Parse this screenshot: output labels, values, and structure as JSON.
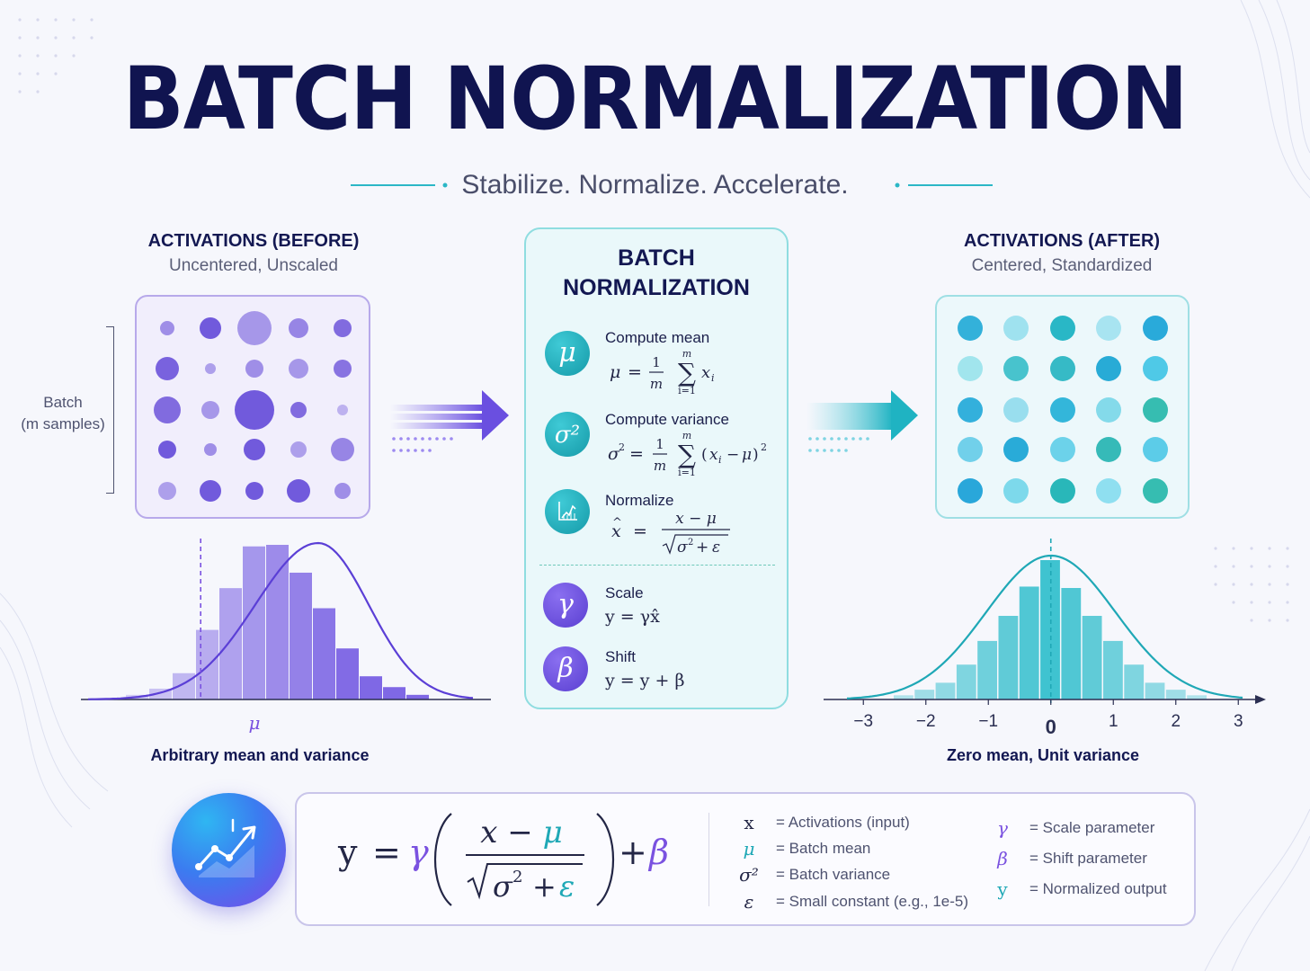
{
  "title": "BATCH NORMALIZATION",
  "subtitle": "Stabilize. Normalize. Accelerate.",
  "colors": {
    "purple": "#6a4fe0",
    "teal": "#1fb7c4",
    "navy": "#101450"
  },
  "before": {
    "heading": "ACTIVATIONS (BEFORE)",
    "subheading": "Uncentered, Unscaled",
    "batch_label": "Batch\n(m samples)",
    "dots": [
      [
        8,
        0.55
      ],
      [
        12,
        0.85
      ],
      [
        19,
        0.5
      ],
      [
        11,
        0.6
      ],
      [
        10,
        0.75
      ],
      [
        13,
        0.8
      ],
      [
        6,
        0.45
      ],
      [
        10,
        0.55
      ],
      [
        11,
        0.5
      ],
      [
        10,
        0.7
      ],
      [
        15,
        0.75
      ],
      [
        10,
        0.5
      ],
      [
        22,
        0.85
      ],
      [
        9,
        0.75
      ],
      [
        6,
        0.35
      ],
      [
        10,
        0.85
      ],
      [
        7,
        0.55
      ],
      [
        12,
        0.85
      ],
      [
        9,
        0.45
      ],
      [
        13,
        0.6
      ],
      [
        10,
        0.45
      ],
      [
        12,
        0.85
      ],
      [
        10,
        0.85
      ],
      [
        13,
        0.85
      ],
      [
        9,
        0.55
      ]
    ],
    "mu_label": "μ",
    "caption": "Arbitrary mean and variance",
    "chart_data": {
      "type": "bar",
      "bars": [
        3,
        7,
        17,
        45,
        72,
        99,
        100,
        82,
        59,
        33,
        15,
        8,
        3
      ],
      "mean_position": 3.2,
      "curve": "skewed normal overlay"
    }
  },
  "after": {
    "heading": "ACTIVATIONS (AFTER)",
    "subheading": "Centered, Standardized",
    "dots": [
      [
        "#1fa8d6",
        0.9
      ],
      [
        "#7fd8ea",
        0.7
      ],
      [
        "#1fb3c3",
        0.95
      ],
      [
        "#8bdcec",
        0.7
      ],
      [
        "#1fa5d8",
        0.95
      ],
      [
        "#8ee0ea",
        0.8
      ],
      [
        "#2bbac4",
        0.85
      ],
      [
        "#22b3c0",
        0.9
      ],
      [
        "#1ea6d4",
        0.95
      ],
      [
        "#3ec3e4",
        0.9
      ],
      [
        "#1fa7d8",
        0.9
      ],
      [
        "#7ed6ea",
        0.75
      ],
      [
        "#1faed6",
        0.9
      ],
      [
        "#6ad2e6",
        0.8
      ],
      [
        "#22b6a8",
        0.9
      ],
      [
        "#5cc9e6",
        0.85
      ],
      [
        "#1fa6d6",
        0.95
      ],
      [
        "#56cbe6",
        0.85
      ],
      [
        "#22b3b0",
        0.9
      ],
      [
        "#4cc6e6",
        0.9
      ],
      [
        "#1fa2d8",
        0.95
      ],
      [
        "#6ad3e8",
        0.85
      ],
      [
        "#1fb3b5",
        0.95
      ],
      [
        "#78d8ee",
        0.8
      ],
      [
        "#22b6a8",
        0.9
      ]
    ],
    "caption": "Zero mean, Unit variance",
    "chart_data": {
      "type": "bar",
      "x": [
        "−3",
        "−2",
        "−1",
        "0",
        "1",
        "2",
        "3"
      ],
      "bars": [
        3,
        7,
        12,
        25,
        42,
        60,
        81,
        100,
        80,
        60,
        42,
        25,
        12,
        7,
        3
      ],
      "xlim": [
        -3,
        3
      ]
    }
  },
  "bn": {
    "title": "BATCH\nNORMALIZATION",
    "steps": [
      {
        "icon": "mu-icon",
        "symbol": "μ",
        "label": "Compute mean"
      },
      {
        "icon": "sigma-squared-icon",
        "symbol": "σ²",
        "label": "Compute variance"
      },
      {
        "icon": "normalize-chart-icon",
        "symbol": "",
        "label": "Normalize"
      },
      {
        "icon": "gamma-icon",
        "symbol": "γ",
        "label": "Scale",
        "formula": "y = γx̂"
      },
      {
        "icon": "beta-icon",
        "symbol": "β",
        "label": "Shift",
        "formula": "y = y + β"
      }
    ]
  },
  "formula": {
    "icon": "trend-chart-icon",
    "legend": [
      {
        "sym": "x",
        "text": "= Activations (input)",
        "color": "#232646"
      },
      {
        "sym": "μ",
        "text": "= Batch mean",
        "color": "#1fa8b6"
      },
      {
        "sym": "σ²",
        "text": "= Batch variance",
        "color": "#232646"
      },
      {
        "sym": "ε",
        "text": "= Small constant (e.g., 1e-5)",
        "color": "#232646"
      },
      {
        "sym": "γ",
        "text": "= Scale parameter",
        "color": "#7a52e0"
      },
      {
        "sym": "β",
        "text": "= Shift parameter",
        "color": "#7a52e0"
      },
      {
        "sym": "y",
        "text": "= Normalized output",
        "color": "#1fa8b6"
      }
    ]
  }
}
